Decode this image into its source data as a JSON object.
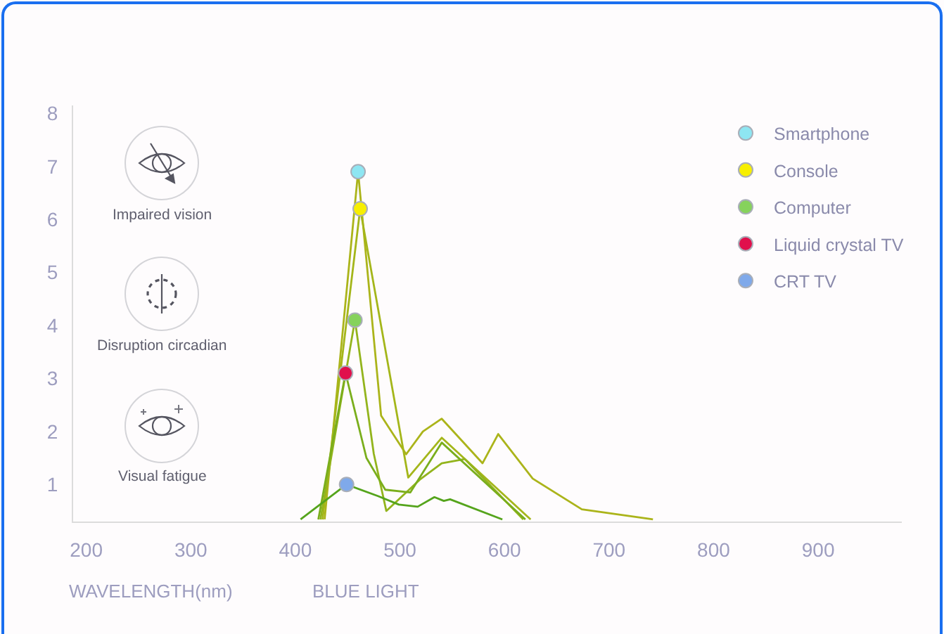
{
  "chart_data": {
    "type": "line",
    "xlabel": "WAVELENGTH(nm)",
    "annotations": [
      "Impaired vision",
      "Disruption circadian",
      "Visual fatigue",
      "BLUE LIGHT"
    ],
    "xlim": [
      187.5,
      980
    ],
    "xticks": [
      200,
      300,
      400,
      500,
      600,
      700,
      800,
      900
    ],
    "ylim": [
      0.3,
      8.15
    ],
    "yticks": [
      1,
      2,
      3,
      4,
      5,
      6,
      7,
      8
    ],
    "grid": false,
    "legend": "top right",
    "marker": "circle",
    "line_style": "solid",
    "series": [
      {
        "marker": "none",
        "color": "#abb41a",
        "x": [
          428,
          460,
          482,
          506,
          522,
          540,
          579,
          594,
          627,
          674,
          742
        ],
        "values": [
          0.34,
          6.9,
          2.3,
          1.57,
          2.0,
          2.24,
          1.4,
          1.95,
          1.11,
          0.53,
          0.34
        ]
      },
      {
        "marker": "none",
        "color": "#a4b61a",
        "x": [
          426,
          462,
          508,
          540,
          625
        ],
        "values": [
          0.34,
          6.2,
          1.13,
          1.88,
          0.34
        ]
      },
      {
        "marker": "none",
        "color": "#93b41c",
        "x": [
          424,
          457,
          475,
          487,
          519,
          540,
          562,
          618
        ],
        "values": [
          0.34,
          4.1,
          1.58,
          0.5,
          1.09,
          1.4,
          1.48,
          0.34
        ]
      },
      {
        "marker": "none",
        "color": "#7aae1c",
        "x": [
          422,
          448,
          468,
          486,
          510,
          540,
          620
        ],
        "values": [
          0.34,
          3.1,
          1.5,
          0.9,
          0.85,
          1.79,
          0.34
        ]
      },
      {
        "marker": "none",
        "color": "#55a41c",
        "x": [
          405,
          449,
          479,
          499,
          517,
          533,
          542,
          548,
          598
        ],
        "values": [
          0.34,
          1.0,
          0.78,
          0.62,
          0.58,
          0.76,
          0.69,
          0.72,
          0.34
        ]
      },
      {
        "type": "scatter",
        "name": "Smartphone",
        "color": "#8ee6f2",
        "x": [
          460
        ],
        "values": [
          6.9
        ]
      },
      {
        "type": "scatter",
        "name": "Console",
        "color": "#f7ef00",
        "x": [
          462
        ],
        "values": [
          6.2
        ]
      },
      {
        "type": "scatter",
        "name": "Computer",
        "color": "#86d25c",
        "x": [
          457
        ],
        "values": [
          4.1
        ]
      },
      {
        "type": "scatter",
        "name": "Liquid crystal TV",
        "color": "#e0104c",
        "x": [
          448
        ],
        "values": [
          3.1
        ]
      },
      {
        "type": "scatter",
        "name": "CRT TV",
        "color": "#7fa9ea",
        "x": [
          449
        ],
        "values": [
          1.0
        ]
      }
    ]
  }
}
